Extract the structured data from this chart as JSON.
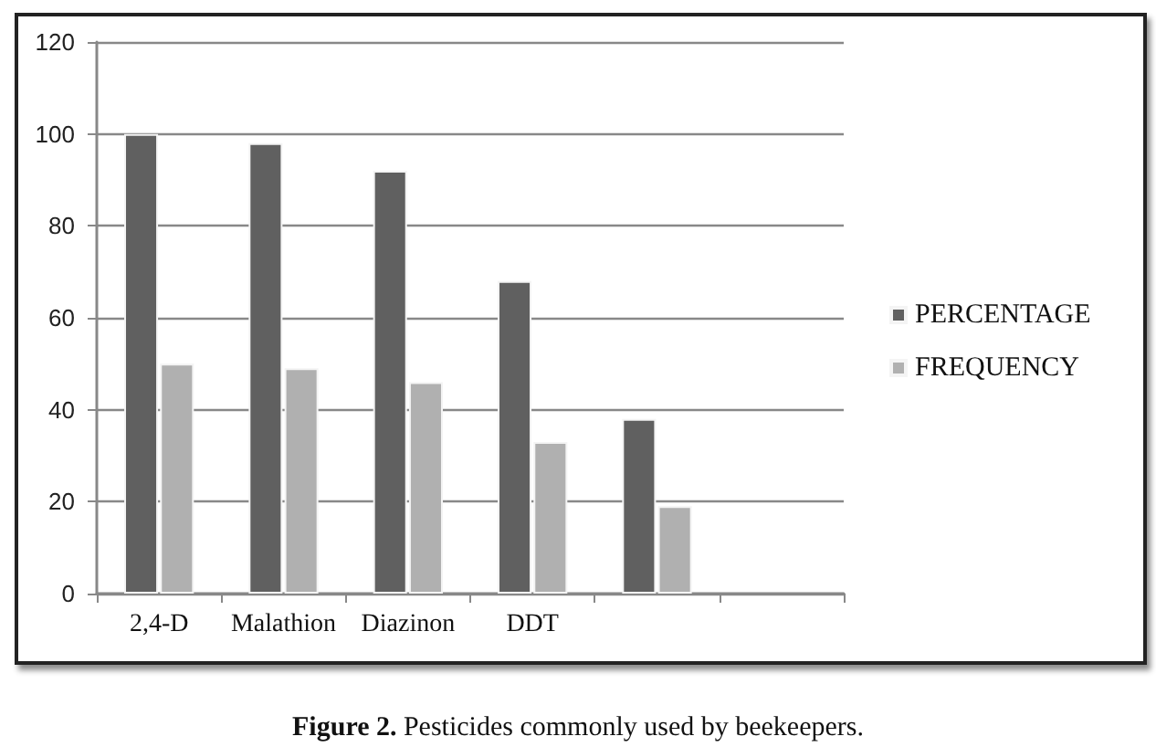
{
  "chart_data": {
    "type": "bar",
    "title": "Figure 2. Pesticides commonly used by beekeepers.",
    "categories": [
      "2,4-D",
      "Malathion",
      "Diazinon",
      "DDT",
      null,
      null
    ],
    "series": [
      {
        "name": "PERCENTAGE",
        "color": "#606060",
        "values": [
          100,
          98,
          92,
          68,
          38,
          null
        ]
      },
      {
        "name": "FREQUENCY",
        "color": "#b0b0b0",
        "values": [
          50,
          49,
          46,
          33,
          19,
          null
        ]
      }
    ],
    "ylim": [
      0,
      120
    ],
    "yticks": [
      0,
      20,
      40,
      60,
      80,
      100,
      120
    ],
    "grid": "y",
    "legend": "right"
  }
}
